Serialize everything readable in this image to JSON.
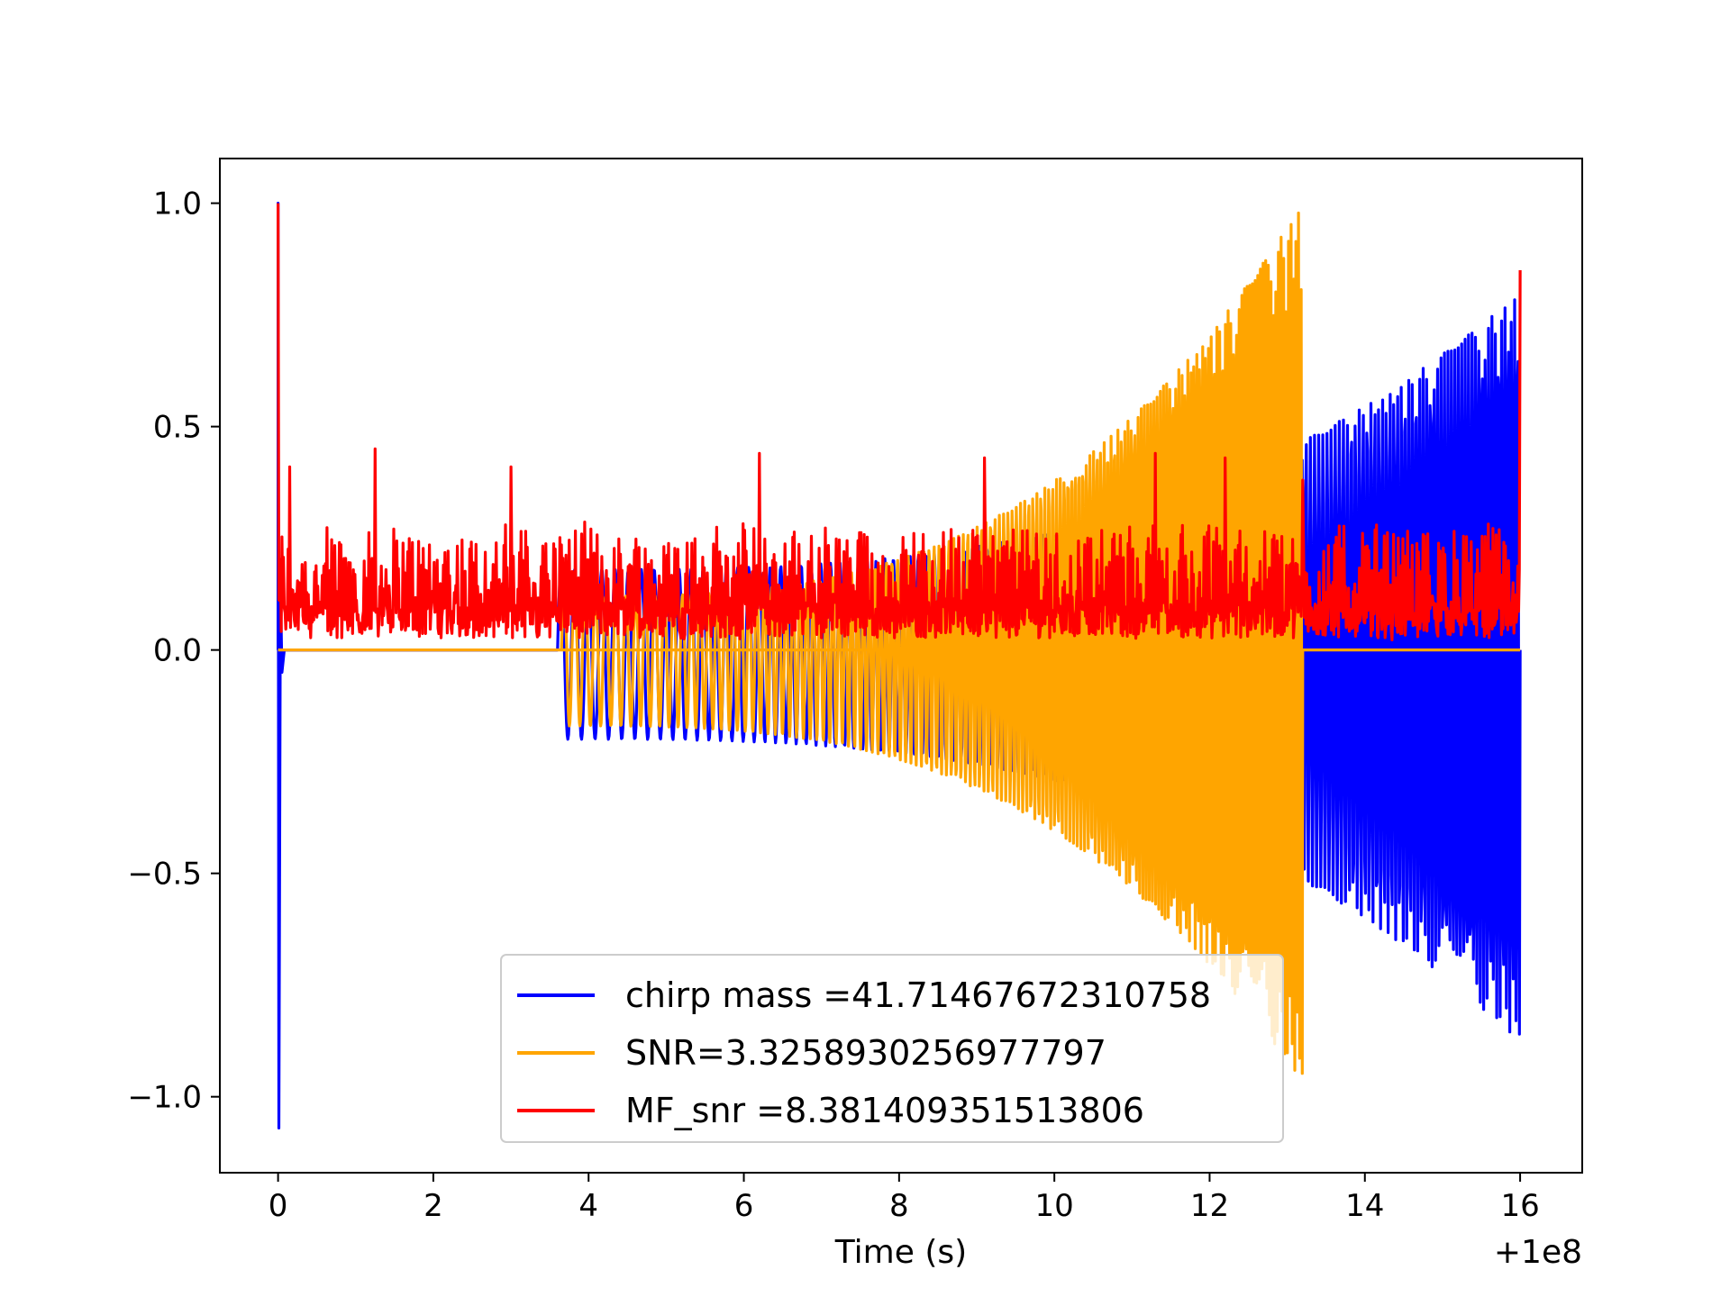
{
  "chart_data": {
    "type": "line",
    "title": "",
    "xlabel": "Time (s)",
    "x_offset_label": "+1e8",
    "ylabel": "",
    "xlim": [
      -0.75,
      16.8
    ],
    "ylim": [
      -1.17,
      1.1
    ],
    "xticks": [
      0,
      2,
      4,
      6,
      8,
      10,
      12,
      14,
      16
    ],
    "xtick_labels": [
      "0",
      "2",
      "4",
      "6",
      "8",
      "10",
      "12",
      "14",
      "16"
    ],
    "yticks": [
      1.0,
      0.5,
      0.0,
      -0.5,
      -1.0
    ],
    "ytick_labels": [
      "1.0",
      "0.5",
      "0.0",
      "−0.5",
      "−1.0"
    ],
    "grid": false,
    "legend_position": "lower-center",
    "series": [
      {
        "name": "chirp mass =41.71467672310758",
        "color": "#0000ff",
        "shape": "chirp",
        "t_start": 0.0,
        "t_merger": 16.0,
        "envelope_start": 0.18,
        "envelope_end": 0.8,
        "trough_start": 0.2,
        "trough_end": 0.88,
        "initial_spike": {
          "x": 0.0,
          "max": 1.0,
          "min": -1.07
        }
      },
      {
        "name": "SNR=3.3258930256977797",
        "color": "#ffa500",
        "shape": "chirp",
        "t_start": 3.65,
        "t_merger": 13.2,
        "envelope_start": 0.12,
        "envelope_end": 1.0,
        "trough_start": 0.17,
        "trough_end": 0.97,
        "baseline": 0.0,
        "baseline_range": [
          0.0,
          16.0
        ]
      },
      {
        "name": "MF_snr =8.381409351513806",
        "color": "#ff0000",
        "shape": "noise",
        "x_range": [
          0.0,
          16.0
        ],
        "typical_low": 0.02,
        "typical_high": 0.26,
        "spikes": [
          {
            "x": 0.0,
            "y": 1.0
          },
          {
            "x": 0.15,
            "y": 0.41
          },
          {
            "x": 1.25,
            "y": 0.45
          },
          {
            "x": 3.0,
            "y": 0.41
          },
          {
            "x": 6.2,
            "y": 0.44
          },
          {
            "x": 9.1,
            "y": 0.43
          },
          {
            "x": 11.3,
            "y": 0.44
          },
          {
            "x": 12.2,
            "y": 0.43
          },
          {
            "x": 13.2,
            "y": 0.38
          },
          {
            "x": 16.0,
            "y": 0.85
          }
        ]
      }
    ]
  }
}
